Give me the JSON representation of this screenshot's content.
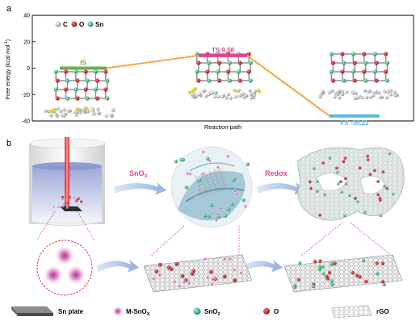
{
  "panel_a": {
    "tag": "a"
  },
  "panel_b": {
    "tag": "b",
    "arrow1_label": "SnO",
    "arrow1_sub": "X",
    "arrow2_label": "Redox"
  },
  "legend": {
    "atom_c": "C",
    "atom_o": "O",
    "atom_sn": "Sn"
  },
  "bottom_legend": {
    "sn_plate": "Sn plate",
    "m_snox": "M-SnO",
    "m_snox_sub": "X",
    "sno2": "SnO",
    "sno2_sub": "2",
    "o": "O",
    "rgo": "rGO"
  },
  "colors": {
    "is": "#6ab33e",
    "ts": "#e4418f",
    "fs": "#5bb8e0",
    "dash": "#f5a042",
    "carbon": "#b8b8b8",
    "oxygen": "#c8272d",
    "tin": "#3fb27f",
    "sulfur": "#e2d42b"
  },
  "chart_data": {
    "type": "line",
    "title": "",
    "xlabel": "Reaction path",
    "ylabel": "Free energy (kcal mol",
    "ylabel_sup": "-1",
    "ylabel_close": ")",
    "ylim": [
      -40,
      40
    ],
    "yticks": [
      40,
      20,
      0,
      -20,
      -40
    ],
    "categories": [
      "IS",
      "TS",
      "FS"
    ],
    "values": [
      0,
      9.58,
      -36.21
    ],
    "state_labels": [
      "IS",
      "TS  9.58",
      "FS  -36.21"
    ],
    "grid": false
  }
}
